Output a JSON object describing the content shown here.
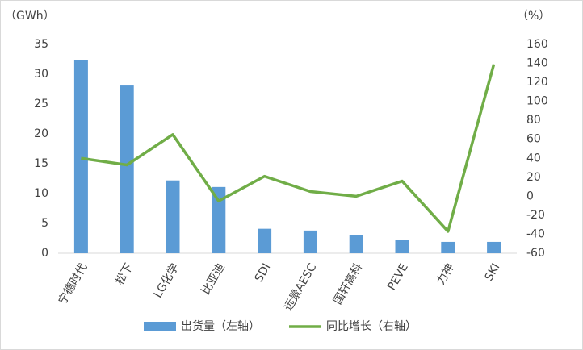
{
  "chart_data": {
    "type": "bar_line",
    "y_label": "（GWh）",
    "y2_label": "（%）",
    "categories": [
      "宁德时代",
      "松下",
      "LG化学",
      "比亚迪",
      "SDI",
      "远景AESC",
      "国轩高科",
      "PEVE",
      "力神",
      "SKI"
    ],
    "series": [
      {
        "name": "出货量（左轴）",
        "type": "bar",
        "color": "#5b9bd5",
        "values": [
          32.4,
          28.1,
          12.2,
          11.1,
          4.1,
          3.8,
          3.1,
          2.2,
          1.9,
          1.9
        ]
      },
      {
        "name": "同比增长（右轴）",
        "type": "line",
        "axis": "y2",
        "color": "#70ad47",
        "values": [
          40,
          33,
          65,
          -5,
          21,
          5,
          0,
          16,
          -37,
          139
        ]
      }
    ],
    "ylim": [
      0,
      35
    ],
    "yticks": [
      0,
      5,
      10,
      15,
      20,
      25,
      30,
      35
    ],
    "y2lim": [
      -60,
      160
    ],
    "y2ticks": [
      -60,
      -40,
      -20,
      0,
      20,
      40,
      60,
      80,
      100,
      120,
      140,
      160
    ],
    "legend": "bottom"
  }
}
